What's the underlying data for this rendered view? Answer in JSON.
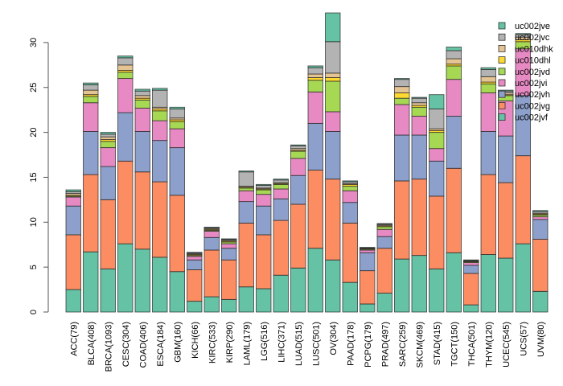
{
  "chart_data": {
    "type": "bar",
    "stacked": true,
    "title": "",
    "xlabel": "",
    "ylabel": "",
    "ylim": [
      0,
      33.5
    ],
    "yticks": [
      0,
      5,
      10,
      15,
      20,
      25,
      30
    ],
    "grid": false,
    "legend_position": "top-right",
    "categories": [
      "ACC(79)",
      "BLCA(408)",
      "BRCA(1093)",
      "CESC(304)",
      "COAD(406)",
      "ESCA(184)",
      "GBM(160)",
      "KICH(66)",
      "KIRC(533)",
      "KIRP(290)",
      "LAML(179)",
      "LGG(516)",
      "LIHC(371)",
      "LUAD(515)",
      "LUSC(501)",
      "OV(304)",
      "PAAD(178)",
      "PCPG(179)",
      "PRAD(497)",
      "SARC(259)",
      "SKCM(469)",
      "STAD(415)",
      "TGCT(150)",
      "THCA(501)",
      "THYM(120)",
      "UCEC(545)",
      "UCS(57)",
      "UVM(80)"
    ],
    "series": [
      {
        "name": "uc002jvf",
        "color": "#66C2A5",
        "values": [
          2.5,
          6.7,
          4.8,
          7.6,
          7.0,
          6.1,
          4.5,
          1.2,
          1.7,
          1.4,
          2.8,
          2.6,
          4.1,
          4.9,
          7.1,
          5.8,
          3.3,
          0.9,
          2.1,
          5.9,
          6.3,
          4.8,
          6.6,
          0.8,
          6.4,
          6.0,
          7.6,
          2.3
        ]
      },
      {
        "name": "uc002jvg",
        "color": "#FC8D62",
        "values": [
          6.1,
          8.6,
          7.7,
          9.2,
          8.6,
          8.4,
          8.5,
          3.5,
          5.2,
          4.4,
          7.1,
          6.0,
          6.1,
          7.1,
          8.7,
          9.0,
          6.6,
          3.7,
          5.0,
          8.7,
          8.5,
          8.1,
          9.4,
          3.5,
          8.9,
          8.4,
          9.8,
          5.8
        ]
      },
      {
        "name": "uc002jvh",
        "color": "#8DA0CB",
        "values": [
          3.2,
          4.8,
          3.7,
          5.4,
          4.5,
          4.6,
          5.3,
          1.1,
          1.4,
          1.3,
          2.4,
          3.2,
          2.4,
          3.2,
          5.2,
          5.3,
          2.3,
          2.0,
          1.3,
          5.1,
          4.9,
          3.9,
          5.8,
          0.9,
          4.8,
          5.2,
          6.7,
          2.2
        ]
      },
      {
        "name": "uc002jvi",
        "color": "#E78AC3",
        "values": [
          1.0,
          3.2,
          2.1,
          3.8,
          2.6,
          2.2,
          2.1,
          0.4,
          0.7,
          0.5,
          1.2,
          1.3,
          1.1,
          1.9,
          3.5,
          2.2,
          1.3,
          0.3,
          0.8,
          3.4,
          2.1,
          1.4,
          4.1,
          0.3,
          4.3,
          3.9,
          5.2,
          0.3
        ]
      },
      {
        "name": "uc002jvd",
        "color": "#A6D854",
        "values": [
          0.1,
          0.7,
          0.7,
          0.7,
          0.9,
          1.1,
          0.8,
          0.1,
          0.1,
          0.2,
          0.3,
          0.5,
          0.5,
          0.8,
          1.3,
          3.4,
          0.5,
          0.1,
          0.3,
          0.7,
          1.0,
          1.8,
          1.5,
          0.1,
          1.0,
          0.6,
          0.8,
          0.2
        ]
      },
      {
        "name": "uc010dhl",
        "color": "#FFD92F",
        "values": [
          0.1,
          0.2,
          0.2,
          0.2,
          0.2,
          0.2,
          0.2,
          0.1,
          0.1,
          0.1,
          0.1,
          0.1,
          0.1,
          0.1,
          0.3,
          0.4,
          0.2,
          0.05,
          0.1,
          0.6,
          0.2,
          0.2,
          0.2,
          0.05,
          0.2,
          0.1,
          0.2,
          0.1
        ]
      },
      {
        "name": "uc010dhk",
        "color": "#E5C494",
        "values": [
          0.2,
          0.5,
          0.3,
          0.6,
          0.3,
          0.2,
          0.2,
          0.1,
          0.1,
          0.1,
          0.1,
          0.1,
          0.1,
          0.2,
          0.4,
          0.5,
          0.1,
          0.05,
          0.1,
          0.7,
          0.3,
          0.2,
          0.6,
          0.05,
          0.6,
          0.2,
          0.3,
          0.1
        ]
      },
      {
        "name": "uc002jvc",
        "color": "#B3B3B3",
        "values": [
          0.2,
          0.6,
          0.3,
          0.8,
          0.5,
          1.9,
          1.0,
          0.1,
          0.1,
          0.1,
          1.6,
          0.3,
          0.3,
          0.3,
          0.7,
          3.5,
          0.2,
          0.05,
          0.1,
          0.8,
          0.5,
          2.2,
          0.9,
          0.05,
          0.8,
          0.2,
          0.3,
          0.2
        ]
      },
      {
        "name": "uc002jve",
        "color": "#66C2A5",
        "values": [
          0.2,
          0.2,
          0.2,
          0.2,
          0.2,
          0.2,
          0.2,
          0.05,
          0.05,
          0.05,
          0.1,
          0.1,
          0.1,
          0.1,
          0.2,
          3.2,
          0.1,
          0.05,
          0.05,
          0.1,
          0.1,
          1.6,
          0.4,
          0.05,
          0.2,
          0.1,
          0.1,
          0.1
        ]
      }
    ],
    "legend_order": [
      "uc002jve",
      "uc002jvc",
      "uc010dhk",
      "uc010dhl",
      "uc002jvd",
      "uc002jvi",
      "uc002jvh",
      "uc002jvg",
      "uc002jvf"
    ]
  }
}
